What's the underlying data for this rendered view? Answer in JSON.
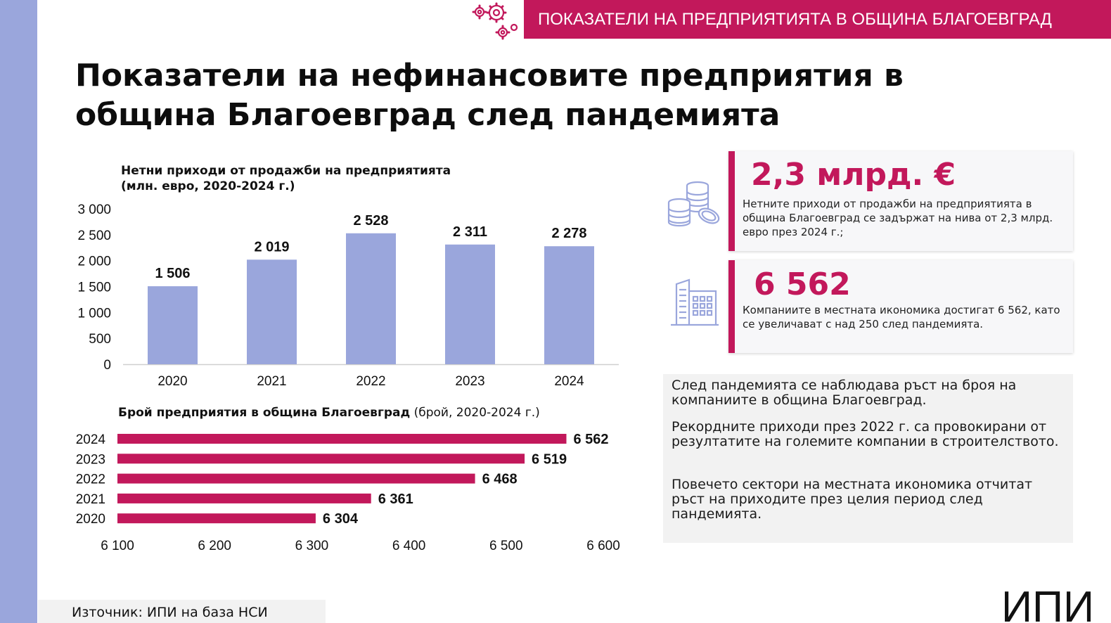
{
  "header": {
    "text": "ПОКАЗАТЕЛИ НА ПРЕДПРИЯТИЯТА В ОБЩИНА БЛАГОЕВГРАД"
  },
  "title": {
    "line1": "Показатели на нефинансовите предприятия в",
    "line2": "община Благоевград след пандемията"
  },
  "colors": {
    "accent": "#c2185b",
    "bar": "#9aa6dc",
    "side": "#9aa6dc"
  },
  "chart_data": [
    {
      "type": "bar",
      "title_line1": "Нетни приходи от продажби на предприятията",
      "title_line2": "(млн. евро, 2020-2024 г.)",
      "categories": [
        "2020",
        "2021",
        "2022",
        "2023",
        "2024"
      ],
      "values": [
        1506,
        2019,
        2528,
        2311,
        2278
      ],
      "value_labels": [
        "1 506",
        "2 019",
        "2 528",
        "2 311",
        "2 278"
      ],
      "ylim": [
        0,
        3000
      ],
      "yticks": [
        0,
        500,
        1000,
        1500,
        2000,
        2500,
        3000
      ],
      "ytick_labels": [
        "0",
        "500",
        "1 000",
        "1 500",
        "2 000",
        "2 500",
        "3 000"
      ],
      "grid": false
    },
    {
      "type": "bar",
      "orientation": "horizontal",
      "title_bold": "Брой предприятия в община Благоевград",
      "title_rest": " (брой, 2020-2024 г.)",
      "categories": [
        "2024",
        "2023",
        "2022",
        "2021",
        "2020"
      ],
      "values": [
        6562,
        6519,
        6468,
        6361,
        6304
      ],
      "value_labels": [
        "6 562",
        "6 519",
        "6 468",
        "6 361",
        "6 304"
      ],
      "xlim": [
        6100,
        6600
      ],
      "xticks": [
        6100,
        6200,
        6300,
        6400,
        6500,
        6600
      ],
      "xtick_labels": [
        "6 100",
        "6 200",
        "6 300",
        "6 400",
        "6 500",
        "6 600"
      ],
      "grid": false
    }
  ],
  "cards": {
    "revenue": {
      "value": "2,3 млрд. €",
      "desc": "Нетните приходи от продажби на предприятията в община Благоевград се задържат на нива от 2,3 млрд. евро през 2024 г.;",
      "icon": "coins-icon"
    },
    "companies": {
      "value": "6 562",
      "desc": "Компаниите в местната икономика достигат 6 562, като се увеличават с над 250 след пандемията.",
      "icon": "building-icon"
    }
  },
  "notes": [
    "След пандемията се наблюдава ръст на броя на компаниите в община Благоевград.",
    "Рекордните приходи през 2022 г. са провокирани от резултатите на големите компании в строителството.",
    "Повечето сектори на местната икономика отчитат ръст на приходите през целия период след пандемията."
  ],
  "source": "Източник: ИПИ на база НСИ",
  "logo": {
    "text": "ИПИ"
  }
}
